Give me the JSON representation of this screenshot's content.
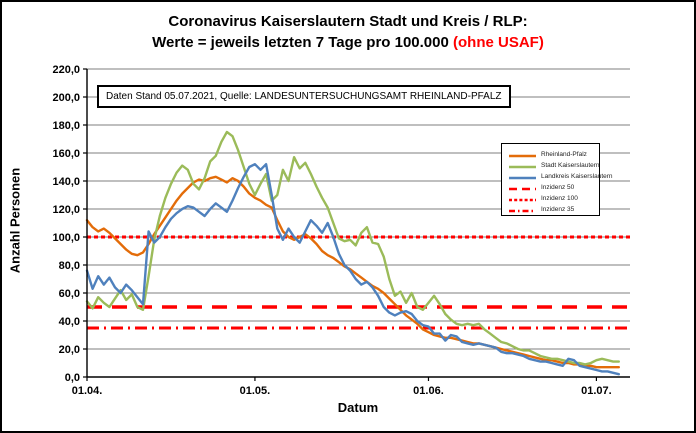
{
  "window": {
    "background": "#ffffff",
    "frame_color": "#000000"
  },
  "title": {
    "line1": "Coronavirus Kaiserslautern Stadt und Kreis / RLP:",
    "line2_black": "Werte = jeweils letzten 7 Tage pro 100.000 ",
    "line2_red": "(ohne USAF)",
    "red_color": "#FF0000"
  },
  "annotation": {
    "text": "Daten Stand 05.07.2021, Quelle: LANDESUNTERSUCHUNGSAMT RHEINLAND-PFALZ"
  },
  "axes": {
    "y_title": "Anzahl Personen",
    "x_title": "Datum",
    "y_tick_labels": [
      "220,0",
      "200,0",
      "180,0",
      "160,0",
      "140,0",
      "120,0",
      "100,0",
      "80,0",
      "60,0",
      "40,0",
      "20,0",
      "0,0"
    ],
    "x_tick_labels": [
      "01.04.",
      "01.05.",
      "01.06.",
      "01.07."
    ],
    "grid_color": "#7F7F7F",
    "axis_color": "#000000"
  },
  "chart_data": {
    "type": "line",
    "title": "Coronavirus Kaiserslautern Stadt und Kreis / RLP: Werte = jeweils letzten 7 Tage pro 100.000 (ohne USAF)",
    "x_start": "01.04.2021",
    "x_end": "05.07.2021",
    "x_interval": "daily",
    "x_tick_labels": [
      "01.04.",
      "01.05.",
      "01.06.",
      "01.07."
    ],
    "x_tick_day_index": [
      0,
      30,
      61,
      91
    ],
    "xlabel": "Datum",
    "ylabel": "Anzahl Personen",
    "ylim": [
      0,
      220
    ],
    "y_tick_step": 20,
    "grid": true,
    "legend_position": "right-middle",
    "series": [
      {
        "name": "Rheinland-Pfalz",
        "color": "#E36C09",
        "values": [
          112,
          107,
          104,
          106,
          103,
          99,
          95,
          91,
          88,
          87,
          89,
          95,
          102,
          108,
          114,
          120,
          126,
          131,
          135,
          139,
          141,
          140,
          142,
          143,
          141,
          139,
          142,
          140,
          136,
          131,
          128,
          126,
          123,
          121,
          112,
          104,
          100,
          98,
          100,
          102,
          99,
          95,
          90,
          87,
          85,
          82,
          79,
          77,
          74,
          71,
          68,
          65,
          63,
          60,
          56,
          52,
          48,
          44,
          41,
          38,
          34,
          32,
          30,
          29,
          28,
          28,
          27,
          26,
          25,
          24,
          24,
          23,
          22,
          21,
          20,
          19,
          18,
          17,
          16,
          15,
          14,
          13,
          12,
          12,
          11,
          10,
          10,
          9,
          9,
          8,
          8,
          7,
          7,
          7,
          7,
          7
        ]
      },
      {
        "name": "Stadt Kaiserslautern",
        "color": "#9BBB59",
        "values": [
          54,
          49,
          57,
          53,
          50,
          56,
          62,
          55,
          59,
          50,
          48,
          72,
          98,
          115,
          128,
          138,
          146,
          151,
          148,
          138,
          134,
          142,
          154,
          158,
          168,
          175,
          172,
          162,
          150,
          138,
          130,
          138,
          145,
          126,
          130,
          148,
          140,
          157,
          149,
          153,
          145,
          136,
          128,
          121,
          110,
          99,
          97,
          98,
          94,
          103,
          107,
          96,
          95,
          86,
          70,
          58,
          61,
          53,
          60,
          50,
          48,
          53,
          58,
          52,
          45,
          41,
          38,
          37,
          38,
          37,
          38,
          34,
          31,
          28,
          25,
          24,
          22,
          20,
          19,
          19,
          17,
          15,
          14,
          13,
          13,
          12,
          11,
          10,
          10,
          9,
          10,
          12,
          13,
          12,
          11,
          11
        ]
      },
      {
        "name": "Landkreis Kaiserslautern",
        "color": "#4F81BD",
        "values": [
          76,
          63,
          72,
          66,
          71,
          64,
          60,
          66,
          62,
          57,
          52,
          104,
          96,
          100,
          107,
          113,
          117,
          120,
          122,
          121,
          118,
          115,
          120,
          124,
          121,
          118,
          126,
          135,
          143,
          150,
          152,
          148,
          152,
          130,
          106,
          98,
          106,
          100,
          96,
          104,
          112,
          108,
          103,
          110,
          100,
          88,
          80,
          76,
          70,
          66,
          68,
          64,
          58,
          50,
          46,
          44,
          46,
          47,
          45,
          40,
          37,
          36,
          31,
          31,
          26,
          30,
          29,
          25,
          24,
          23,
          24,
          23,
          22,
          21,
          18,
          17,
          17,
          16,
          15,
          13,
          12,
          11,
          11,
          10,
          9,
          8,
          13,
          12,
          8,
          7,
          6,
          5,
          4,
          4,
          3,
          2
        ]
      }
    ],
    "reference_lines": [
      {
        "name": "Inzidenz 50",
        "value": 50,
        "color": "#FF0000",
        "style": "long-dash"
      },
      {
        "name": "Inzidenz 100",
        "value": 100,
        "color": "#FF0000",
        "style": "dotted"
      },
      {
        "name": "Inzidenz 35",
        "value": 35,
        "color": "#FF0000",
        "style": "dash-dot"
      }
    ]
  }
}
